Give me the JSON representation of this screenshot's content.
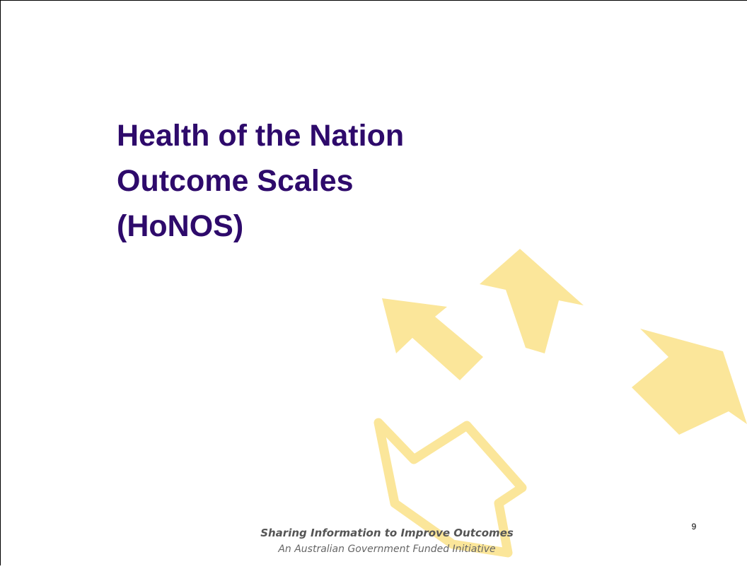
{
  "slide": {
    "title_lines": [
      "Health of the Nation",
      "Outcome Scales",
      "(HoNOS)"
    ],
    "footer": {
      "line1": "Sharing Information to Improve Outcomes",
      "line2": "An Australian Government Funded Initiative"
    },
    "page_number": 9
  }
}
